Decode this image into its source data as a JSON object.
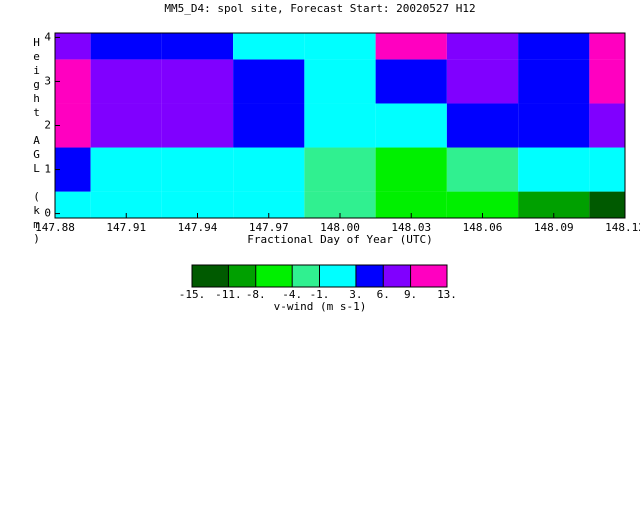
{
  "chart_data": {
    "type": "contour",
    "title": "MM5_D4: spol site,  Forecast Start: 20020527 H12",
    "xlabel": "Fractional Day of Year (UTC)",
    "ylabel": "Height AGL (km)",
    "x": [
      147.88,
      147.91,
      147.94,
      147.97,
      148.0,
      148.03,
      148.06,
      148.09,
      148.12
    ],
    "y": [
      0,
      1,
      2,
      3,
      4
    ],
    "z": [
      [
        1,
        -1,
        -1,
        1,
        -3,
        -5,
        -6,
        -9,
        -13
      ],
      [
        4,
        1,
        1,
        1,
        -3,
        -5,
        -3,
        -1,
        -1
      ],
      [
        10,
        7,
        7,
        4,
        -1,
        1,
        5,
        4,
        7
      ],
      [
        10,
        7,
        7,
        4,
        1,
        4,
        7,
        4,
        10
      ],
      [
        7,
        4,
        4,
        1,
        2,
        10,
        7,
        4,
        10
      ]
    ],
    "xlim": [
      147.88,
      148.12
    ],
    "ylim": [
      -0.1,
      4.1
    ],
    "xticks": [
      {
        "value": 147.88,
        "label": "147.88"
      },
      {
        "value": 147.91,
        "label": "147.91"
      },
      {
        "value": 147.94,
        "label": "147.94"
      },
      {
        "value": 147.97,
        "label": "147.97"
      },
      {
        "value": 148.0,
        "label": "148.00"
      },
      {
        "value": 148.03,
        "label": "148.03"
      },
      {
        "value": 148.06,
        "label": "148.06"
      },
      {
        "value": 148.09,
        "label": "148.09"
      },
      {
        "value": 148.12,
        "label": "148.12"
      }
    ],
    "yticks": [
      0,
      1,
      2,
      3,
      4
    ],
    "colorbar_label": "v-wind (m s-1)",
    "colorbar_ticks": [
      {
        "value": -15,
        "label": "-15."
      },
      {
        "value": -11,
        "label": "-11."
      },
      {
        "value": -8,
        "label": "-8."
      },
      {
        "value": -4,
        "label": "-4."
      },
      {
        "value": -1,
        "label": "-1."
      },
      {
        "value": 3,
        "label": "3."
      },
      {
        "value": 6,
        "label": "6."
      },
      {
        "value": 9,
        "label": "9."
      },
      {
        "value": 13,
        "label": "13."
      }
    ],
    "colors": [
      "#005a00",
      "#00a000",
      "#00f000",
      "#30f090",
      "#00ffff",
      "#0000ff",
      "#8000ff",
      "#ff00c0"
    ]
  }
}
